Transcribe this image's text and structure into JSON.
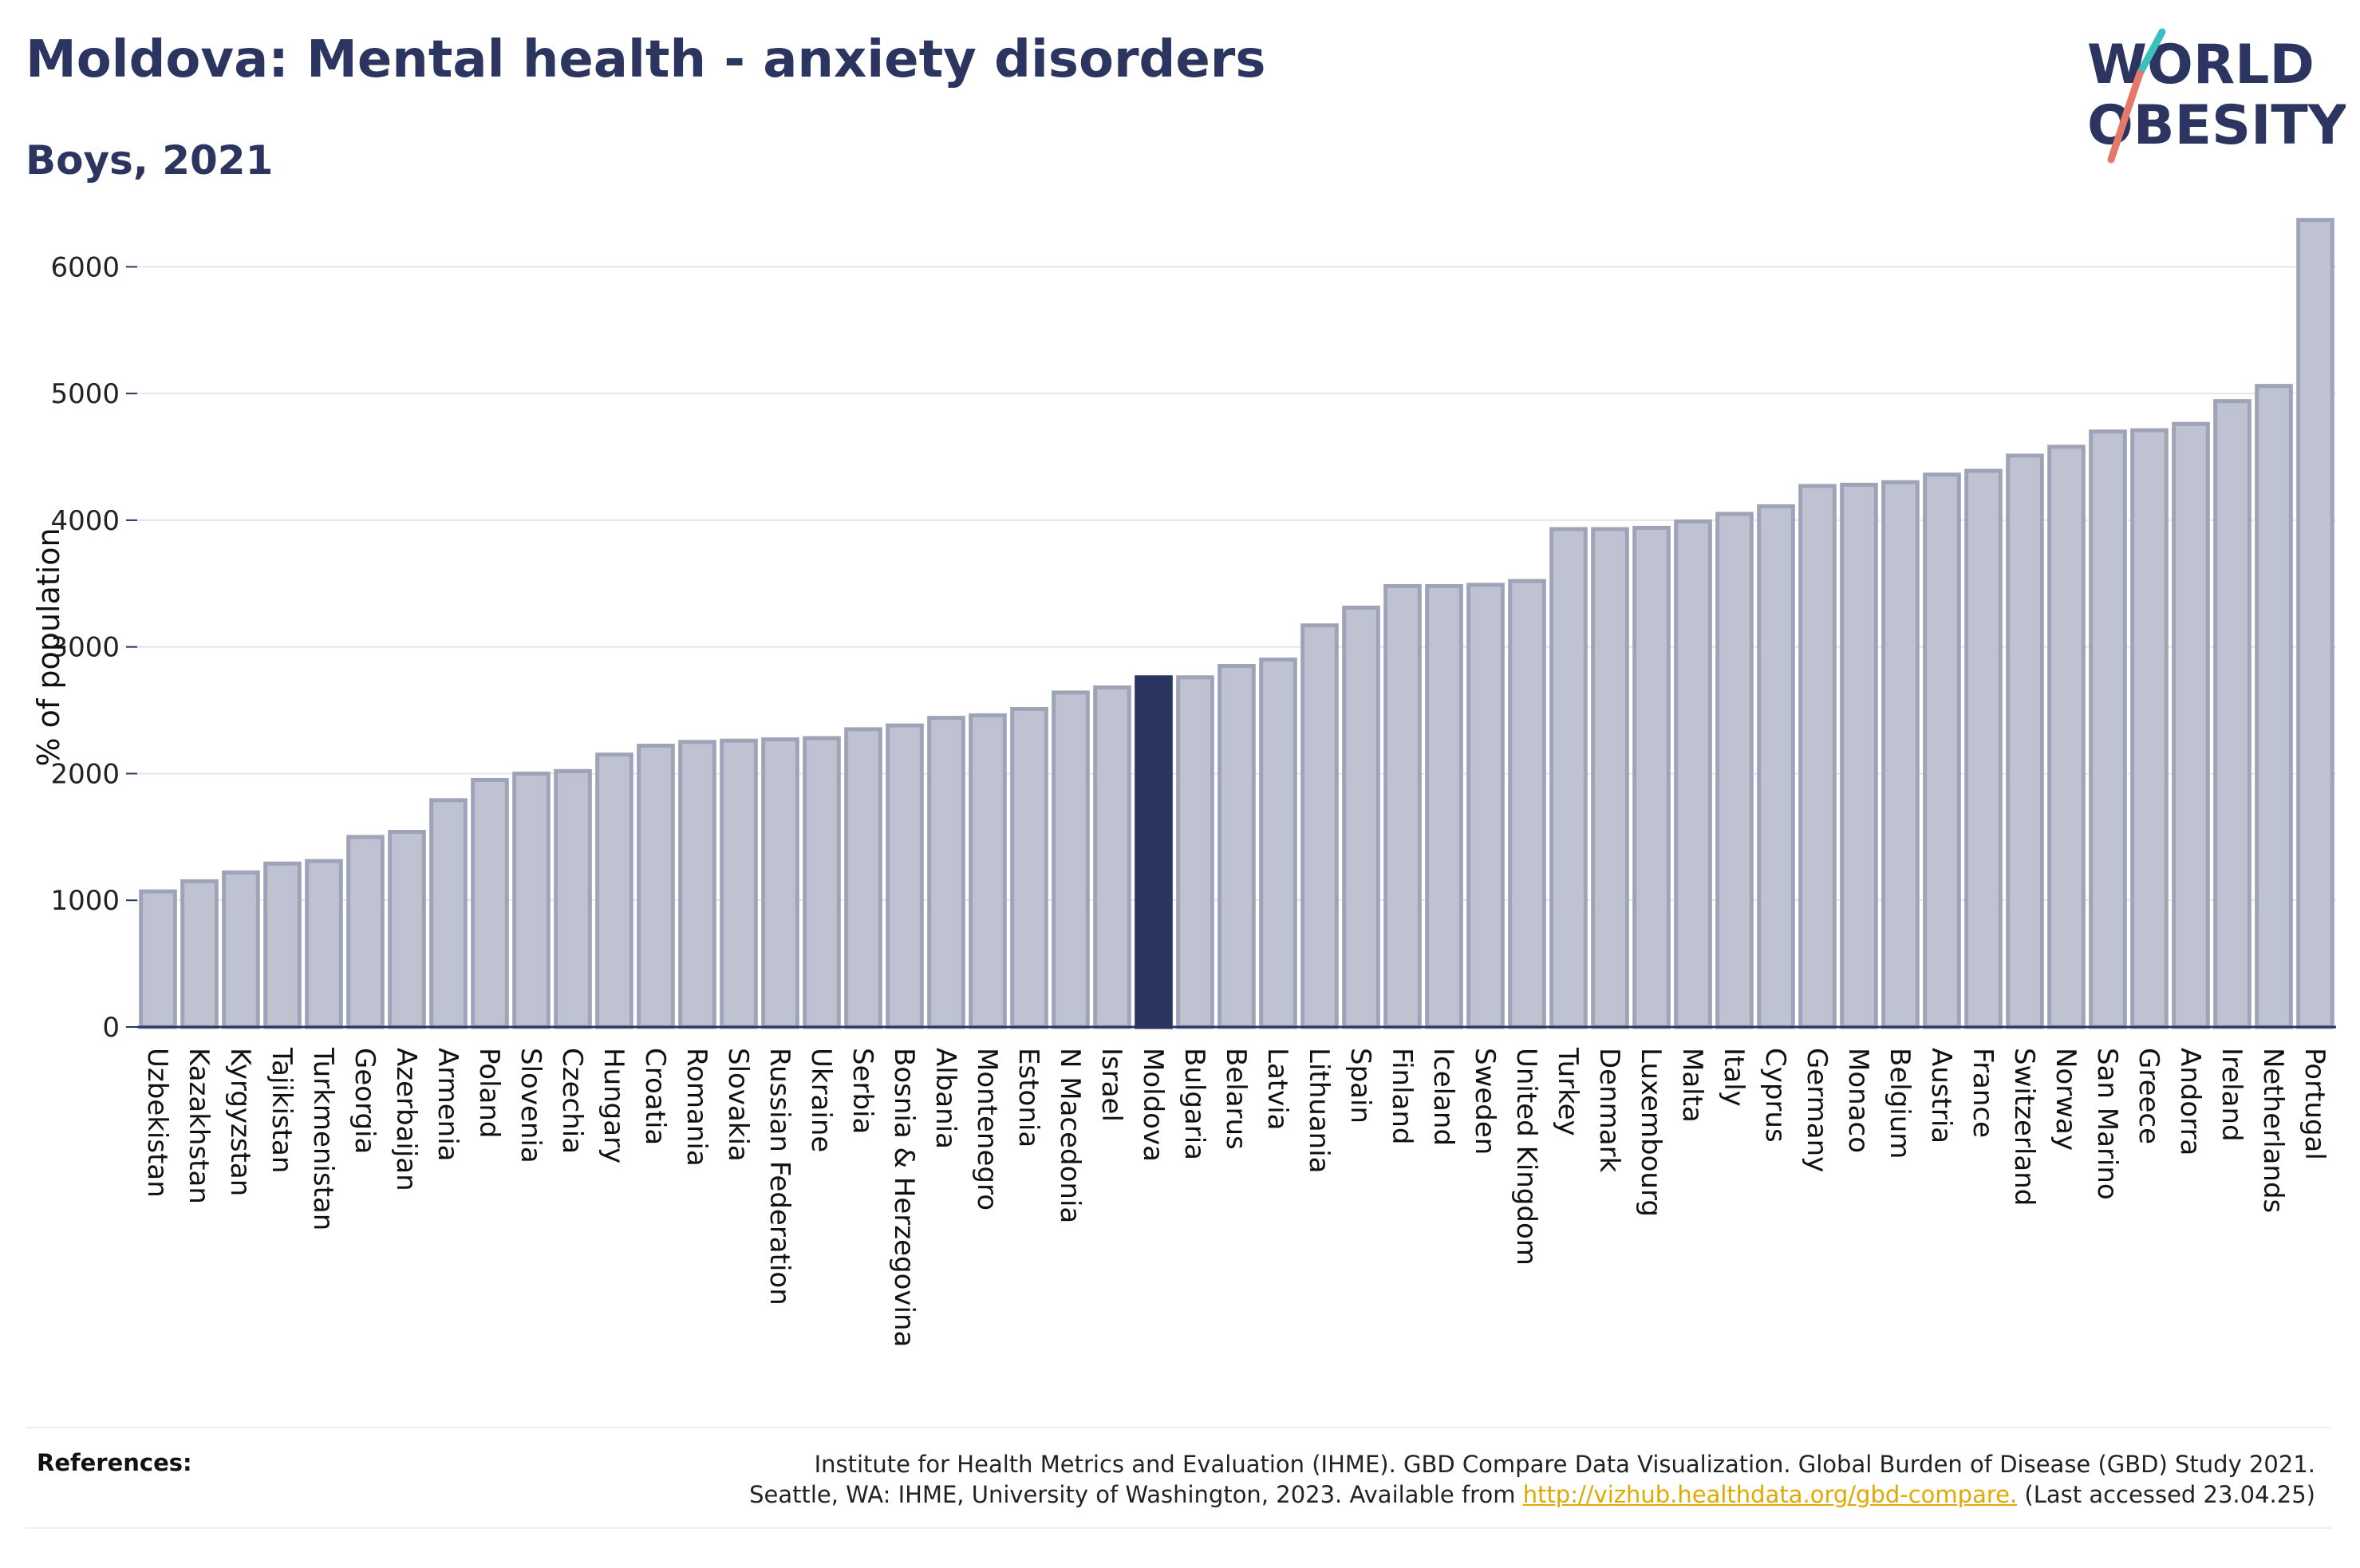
{
  "title": "Moldova: Mental health - anxiety disorders",
  "subtitle": "Boys, 2021",
  "logo": {
    "line1": "WORLD",
    "line2": "OBESITY",
    "accent_colors": [
      "#e4796a",
      "#3bbfbf"
    ]
  },
  "colors": {
    "bar": "#bfc3d1",
    "bar_border": "#9ea3b8",
    "highlight": "#2b3560",
    "grid": "#e6e6e6",
    "axis": "#2b3560"
  },
  "chart_data": {
    "type": "bar",
    "ylabel": "% of population",
    "ylim": [
      0,
      6500
    ],
    "yticks": [
      0,
      1000,
      2000,
      3000,
      4000,
      5000,
      6000
    ],
    "grid": true,
    "highlight": "Moldova",
    "categories": [
      "Uzbekistan",
      "Kazakhstan",
      "Kyrgyzstan",
      "Tajikistan",
      "Turkmenistan",
      "Georgia",
      "Azerbaijan",
      "Armenia",
      "Poland",
      "Slovenia",
      "Czechia",
      "Hungary",
      "Croatia",
      "Romania",
      "Slovakia",
      "Russian Federation",
      "Ukraine",
      "Serbia",
      "Bosnia & Herzegovina",
      "Albania",
      "Montenegro",
      "Estonia",
      "N Macedonia",
      "Israel",
      "Moldova",
      "Bulgaria",
      "Belarus",
      "Latvia",
      "Lithuania",
      "Spain",
      "Finland",
      "Iceland",
      "Sweden",
      "United Kingdom",
      "Turkey",
      "Denmark",
      "Luxembourg",
      "Malta",
      "Italy",
      "Cyprus",
      "Germany",
      "Monaco",
      "Belgium",
      "Austria",
      "France",
      "Switzerland",
      "Norway",
      "San Marino",
      "Greece",
      "Andorra",
      "Ireland",
      "Netherlands",
      "Portugal"
    ],
    "values": [
      1070,
      1150,
      1220,
      1290,
      1310,
      1500,
      1540,
      1790,
      1950,
      2000,
      2020,
      2150,
      2220,
      2250,
      2260,
      2270,
      2280,
      2350,
      2380,
      2440,
      2460,
      2510,
      2640,
      2680,
      2760,
      2760,
      2850,
      2900,
      3170,
      3310,
      3480,
      3480,
      3490,
      3520,
      3930,
      3930,
      3940,
      3990,
      4050,
      4110,
      4270,
      4280,
      4300,
      4360,
      4390,
      4510,
      4580,
      4700,
      4710,
      4760,
      4940,
      5060,
      6370
    ]
  },
  "references": {
    "label": "References:",
    "line1": "Institute for Health Metrics and Evaluation (IHME). GBD Compare Data Visualization. Global Burden of Disease (GBD) Study 2021.",
    "line2_before": "Seattle, WA: IHME, University of Washington, 2023. Available from",
    "link": "http://vizhub.healthdata.org/gbd-compare.",
    "line2_after": "(Last accessed 23.04.25)"
  }
}
